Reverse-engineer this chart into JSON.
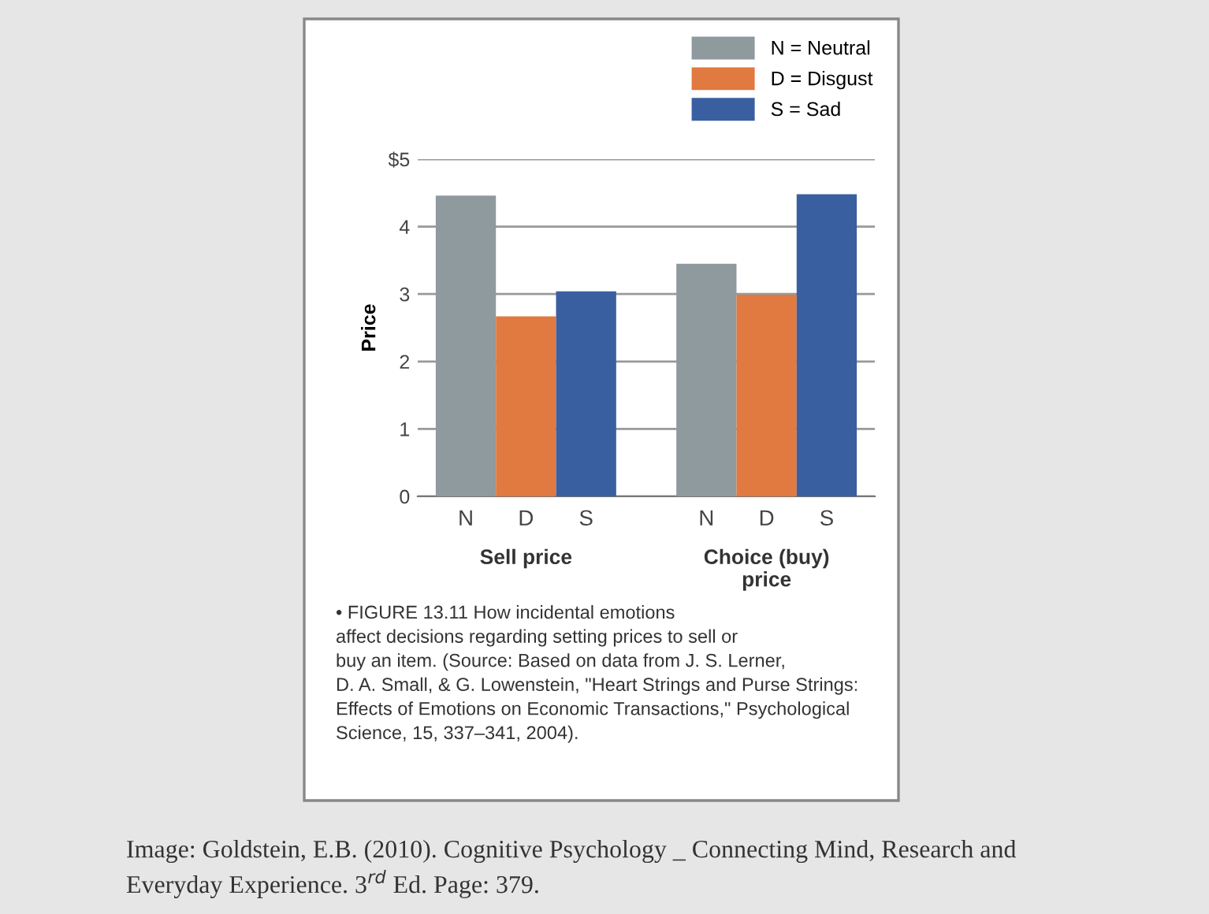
{
  "chart_data": {
    "type": "bar",
    "categories": [
      "N",
      "D",
      "S",
      null,
      "N",
      "D",
      "S"
    ],
    "series": [
      {
        "name": "N = Neutral",
        "color": "#8e9a9e",
        "values": [
          4.46,
          null,
          null,
          null,
          3.45,
          null,
          null
        ]
      },
      {
        "name": "D = Disgust",
        "color": "#e07a40",
        "values": [
          null,
          2.67,
          null,
          null,
          null,
          2.99,
          null
        ]
      },
      {
        "name": "S = Sad",
        "color": "#3a5fa0",
        "values": [
          null,
          null,
          3.04,
          null,
          null,
          null,
          4.48
        ]
      }
    ],
    "ylabel": "Price",
    "ylim": [
      0,
      5
    ],
    "yticks": [
      0,
      1,
      2,
      3,
      4,
      {
        "value": 5,
        "label": "$5"
      }
    ],
    "grid": "y",
    "legend": "top right",
    "annotations": [
      "Sell price",
      "Choice (buy)\nprice",
      "• FIGURE 13.11 How incidental emotions\naffect decisions regarding setting prices to sell or\nbuy an item. (Source: Based on data from J. S. Lerner,\nD. A. Small, & G. Lowenstein, \"Heart Strings and Purse Strings:\nEffects of Emotions on Economic Transactions,\" Psychological\nScience, 15, 337–341, 2004).",
      "Image: Goldstein, E.B. (2010). Cognitive Psychology _ Connecting Mind, Research and\nEveryday Experience. 3$^{rd}$ Ed. Page: 379."
    ]
  }
}
